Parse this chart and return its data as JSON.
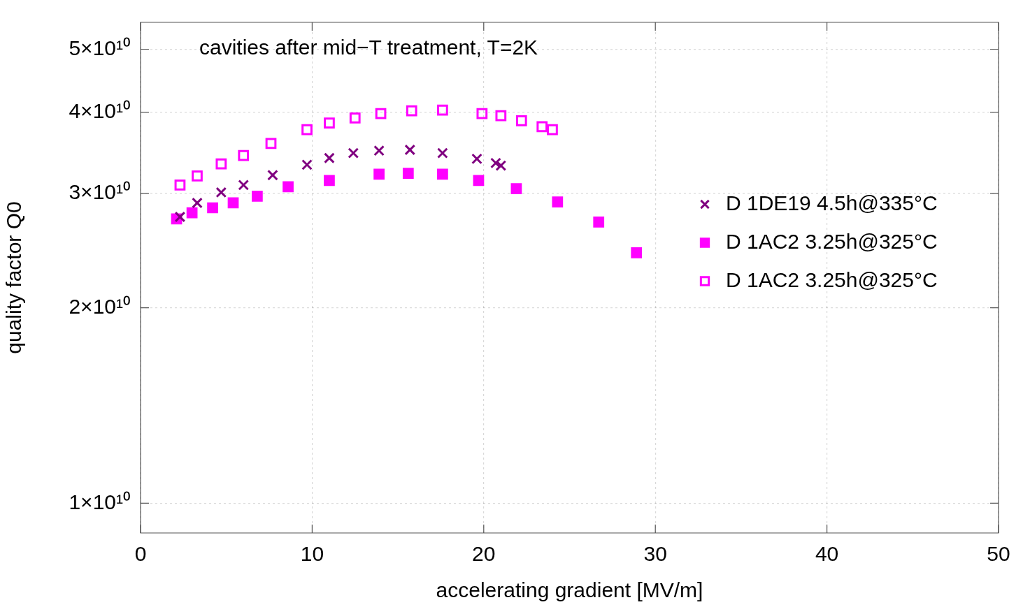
{
  "chart_data": {
    "type": "scatter",
    "title": "cavities after mid−T treatment, T=2K",
    "xlabel": "accelerating gradient [MV/m]",
    "ylabel": "quality factor Q0",
    "xlim": [
      0,
      50
    ],
    "xticks": [
      0,
      10,
      20,
      30,
      40,
      50
    ],
    "ylim": [
      9000000000.0,
      55000000000.0
    ],
    "yticks": [
      {
        "value": 10000000000.0,
        "label": "1×10¹⁰"
      },
      {
        "value": 20000000000.0,
        "label": "2×10¹⁰"
      },
      {
        "value": 30000000000.0,
        "label": "3×10¹⁰"
      },
      {
        "value": 40000000000.0,
        "label": "4×10¹⁰"
      },
      {
        "value": 50000000000.0,
        "label": "5×10¹⁰"
      }
    ],
    "log": "y",
    "grid": true,
    "legend": "right",
    "series": [
      {
        "name": "D 1DE19 4.5h@335°C",
        "color": "#800080",
        "marker": "cross",
        "x": [
          2.3,
          3.3,
          4.7,
          6.0,
          7.7,
          9.7,
          11.0,
          12.4,
          13.9,
          15.7,
          17.6,
          19.6,
          20.7,
          21.0
        ],
        "values": [
          27600000000.0,
          29000000000.0,
          30100000000.0,
          30900000000.0,
          32000000000.0,
          33200000000.0,
          34000000000.0,
          34600000000.0,
          34900000000.0,
          35000000000.0,
          34600000000.0,
          33900000000.0,
          33400000000.0,
          33100000000.0
        ]
      },
      {
        "name": "D 1AC2 3.25h@325°C",
        "color": "#ff00ff",
        "marker": "square",
        "x": [
          2.1,
          3.0,
          4.2,
          5.4,
          6.8,
          8.6,
          11.0,
          13.9,
          15.6,
          17.6,
          19.7,
          21.9,
          24.3,
          26.7,
          28.9
        ],
        "values": [
          27400000000.0,
          28000000000.0,
          28500000000.0,
          29000000000.0,
          29700000000.0,
          30700000000.0,
          31400000000.0,
          32100000000.0,
          32200000000.0,
          32100000000.0,
          31400000000.0,
          30500000000.0,
          29100000000.0,
          27100000000.0,
          24300000000.0
        ]
      },
      {
        "name": "D 1AC2 3.25h@325°C",
        "color": "#ff00ff",
        "marker": "square",
        "x": [
          2.3,
          3.3,
          4.7,
          6.0,
          7.6,
          9.7,
          11.0,
          12.5,
          14.0,
          15.8,
          17.6,
          19.9,
          21.0,
          22.2,
          23.4,
          24.0
        ],
        "values": [
          30900000000.0,
          31900000000.0,
          33300000000.0,
          34300000000.0,
          35800000000.0,
          37600000000.0,
          38500000000.0,
          39200000000.0,
          39800000000.0,
          40200000000.0,
          40300000000.0,
          39800000000.0,
          39500000000.0,
          38800000000.0,
          38000000000.0,
          37600000000.0
        ]
      }
    ]
  }
}
